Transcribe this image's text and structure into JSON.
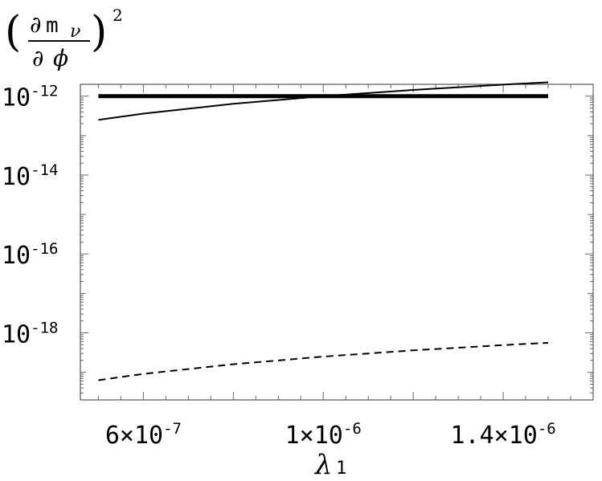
{
  "chart_data": {
    "type": "line",
    "title": "",
    "ylabel": {
      "partial": "∂",
      "mass": "m",
      "nu": "ν",
      "phi": "ϕ",
      "power": "2"
    },
    "xlabel": {
      "symbol": "λ",
      "subscript": "1"
    },
    "xlim": [
      4.6e-07,
      1.6e-06
    ],
    "ylim_log10": [
      -19.7,
      -11.7
    ],
    "y_scale": "log",
    "x_ticks": [
      {
        "value": 6e-07,
        "mant": "6×10",
        "exp": "-7"
      },
      {
        "value": 1e-06,
        "mant": "1×10",
        "exp": "-6"
      },
      {
        "value": 1.4e-06,
        "mant": "1.4×10",
        "exp": "-6"
      }
    ],
    "y_ticks": [
      {
        "log10": -12,
        "base": "10",
        "exp": "-12"
      },
      {
        "log10": -14,
        "base": "10",
        "exp": "-14"
      },
      {
        "log10": -16,
        "base": "10",
        "exp": "-16"
      },
      {
        "log10": -18,
        "base": "10",
        "exp": "-18"
      }
    ],
    "series": [
      {
        "style": "thick",
        "x": [
          5e-07,
          1.5e-06
        ],
        "y": [
          1e-12,
          1e-12
        ]
      },
      {
        "style": "solid",
        "x": [
          5e-07,
          6e-07,
          8e-07,
          1e-06,
          1.2e-06,
          1.4e-06,
          1.5e-06
        ],
        "y": [
          2.5e-13,
          3.6e-13,
          6.4e-13,
          1e-12,
          1.44e-12,
          1.96e-12,
          2.25e-12
        ]
      },
      {
        "style": "dashed",
        "x": [
          5e-07,
          6e-07,
          8e-07,
          1e-06,
          1.2e-06,
          1.4e-06,
          1.5e-06
        ],
        "y": [
          6.3e-20,
          9.1e-20,
          1.6e-19,
          2.5e-19,
          3.6e-19,
          4.9e-19,
          5.6e-19
        ]
      }
    ]
  }
}
